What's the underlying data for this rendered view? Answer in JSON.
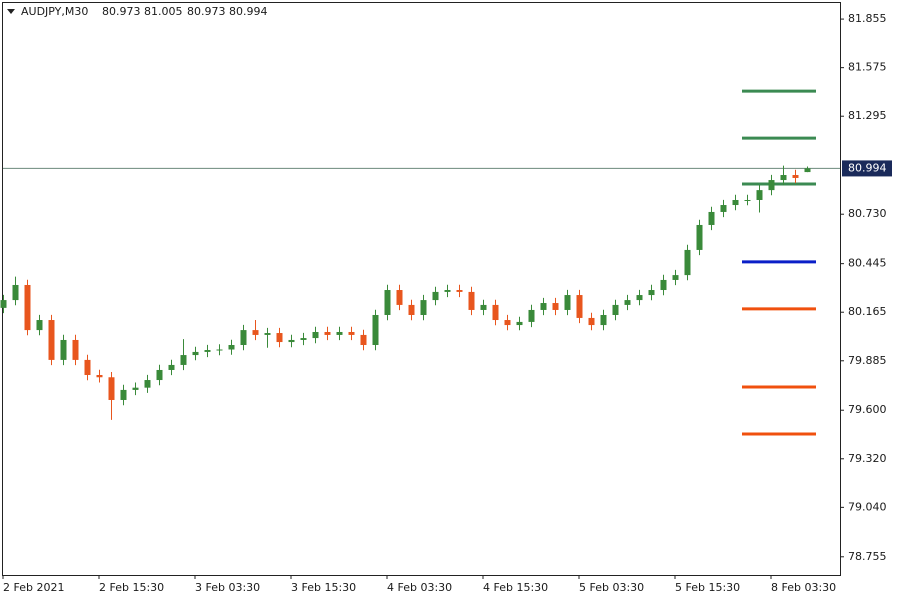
{
  "chart_data": {
    "type": "candlestick",
    "symbol": "AUDJPY,M30",
    "quote": [
      80.973,
      81.005,
      80.973,
      80.994
    ],
    "categories": [
      "2 Feb 2021",
      null,
      null,
      null,
      null,
      null,
      null,
      null,
      "2 Feb 15:30",
      null,
      null,
      null,
      null,
      null,
      null,
      null,
      "3 Feb 03:30",
      null,
      null,
      null,
      null,
      null,
      null,
      null,
      "3 Feb 15:30",
      null,
      null,
      null,
      null,
      null,
      null,
      null,
      "4 Feb 03:30",
      null,
      null,
      null,
      null,
      null,
      null,
      null,
      "4 Feb 15:30",
      null,
      null,
      null,
      null,
      null,
      null,
      null,
      "5 Feb 03:30",
      null,
      null,
      null,
      null,
      null,
      null,
      null,
      "5 Feb 15:30",
      null,
      null,
      null,
      null,
      null,
      null,
      null,
      "8 Feb 03:30",
      null,
      null,
      null
    ],
    "open": [
      80.19,
      80.235,
      80.322,
      80.062,
      80.12,
      79.89,
      80.005,
      79.89,
      79.803,
      79.79,
      79.659,
      79.717,
      79.73,
      79.774,
      79.832,
      79.861,
      79.918,
      79.936,
      79.947,
      79.95,
      79.976,
      80.062,
      80.034,
      80.045,
      79.993,
      80.005,
      80.016,
      80.051,
      80.034,
      80.051,
      80.034,
      79.976,
      80.149,
      80.293,
      80.207,
      80.149,
      80.235,
      80.282,
      80.293,
      80.282,
      80.178,
      80.207,
      80.12,
      80.091,
      80.109,
      80.178,
      80.218,
      80.178,
      80.264,
      80.132,
      80.091,
      80.149,
      80.207,
      80.235,
      80.264,
      80.293,
      80.351,
      80.379,
      80.524,
      80.668,
      80.743,
      80.783,
      80.812,
      80.812,
      80.869,
      80.927,
      80.956,
      80.973
    ],
    "high": [
      80.265,
      80.37,
      80.352,
      80.15,
      80.15,
      80.035,
      80.035,
      79.92,
      79.833,
      79.82,
      79.747,
      79.76,
      79.804,
      79.862,
      79.891,
      80.01,
      79.966,
      79.977,
      79.98,
      80.006,
      80.092,
      80.12,
      80.075,
      80.075,
      80.035,
      80.046,
      80.081,
      80.081,
      80.081,
      80.081,
      80.064,
      80.179,
      80.323,
      80.323,
      80.237,
      80.265,
      80.312,
      80.323,
      80.323,
      80.312,
      80.237,
      80.237,
      80.15,
      80.139,
      80.208,
      80.248,
      80.248,
      80.294,
      80.294,
      80.162,
      80.179,
      80.237,
      80.265,
      80.294,
      80.323,
      80.381,
      80.409,
      80.554,
      80.698,
      80.773,
      80.813,
      80.842,
      80.842,
      80.899,
      80.957,
      81.01,
      80.986,
      81.005
    ],
    "low": [
      80.16,
      80.205,
      80.032,
      80.032,
      79.86,
      79.86,
      79.86,
      79.773,
      79.76,
      79.544,
      79.629,
      79.687,
      79.7,
      79.744,
      79.802,
      79.831,
      79.888,
      79.906,
      79.917,
      79.92,
      79.946,
      80.004,
      79.96,
      79.963,
      79.963,
      79.975,
      79.986,
      80.004,
      80.004,
      80.004,
      79.946,
      79.946,
      80.119,
      80.177,
      80.119,
      80.119,
      80.205,
      80.252,
      80.252,
      80.148,
      80.148,
      80.09,
      80.061,
      80.061,
      80.079,
      80.148,
      80.148,
      80.148,
      80.102,
      80.061,
      80.061,
      80.119,
      80.177,
      80.205,
      80.234,
      80.263,
      80.321,
      80.349,
      80.494,
      80.638,
      80.713,
      80.753,
      80.782,
      80.74,
      80.839,
      80.897,
      80.909,
      80.973
    ],
    "close": [
      80.235,
      80.322,
      80.062,
      80.12,
      79.89,
      80.005,
      79.89,
      79.803,
      79.79,
      79.659,
      79.717,
      79.73,
      79.774,
      79.832,
      79.861,
      79.918,
      79.936,
      79.947,
      79.95,
      79.976,
      80.062,
      80.034,
      80.045,
      79.993,
      80.005,
      80.016,
      80.051,
      80.034,
      80.051,
      80.034,
      79.976,
      80.149,
      80.293,
      80.207,
      80.149,
      80.235,
      80.282,
      80.293,
      80.282,
      80.178,
      80.207,
      80.12,
      80.091,
      80.109,
      80.178,
      80.218,
      80.178,
      80.264,
      80.132,
      80.091,
      80.149,
      80.207,
      80.235,
      80.264,
      80.293,
      80.351,
      80.379,
      80.524,
      80.668,
      80.743,
      80.783,
      80.812,
      80.812,
      80.869,
      80.927,
      80.956,
      80.939,
      80.994
    ],
    "up_color": "#3a8a3a",
    "down_color": "#e8561e",
    "ylim": [
      78.65,
      81.965
    ],
    "yticks": [
      81.855,
      81.575,
      81.295,
      {
        "value": 80.73,
        "label": "80.730"
      },
      80.445,
      80.165,
      79.885,
      {
        "value": 79.6,
        "label": "79.600"
      },
      {
        "value": 79.32,
        "label": "79.320"
      },
      {
        "value": 79.04,
        "label": "79.040"
      },
      78.755
    ],
    "current_price": 80.994,
    "levels": [
      {
        "value": 81.44,
        "color": "#3b8a52"
      },
      {
        "value": 81.169,
        "color": "#3b8a52"
      },
      {
        "value": 80.904,
        "color": "#3b8a52"
      },
      {
        "value": 80.455,
        "color": "#0a1fc8"
      },
      {
        "value": 80.184,
        "color": "#f0500e"
      },
      {
        "value": 79.734,
        "color": "#f0500e"
      },
      {
        "value": 79.463,
        "color": "#f0500e"
      }
    ]
  }
}
